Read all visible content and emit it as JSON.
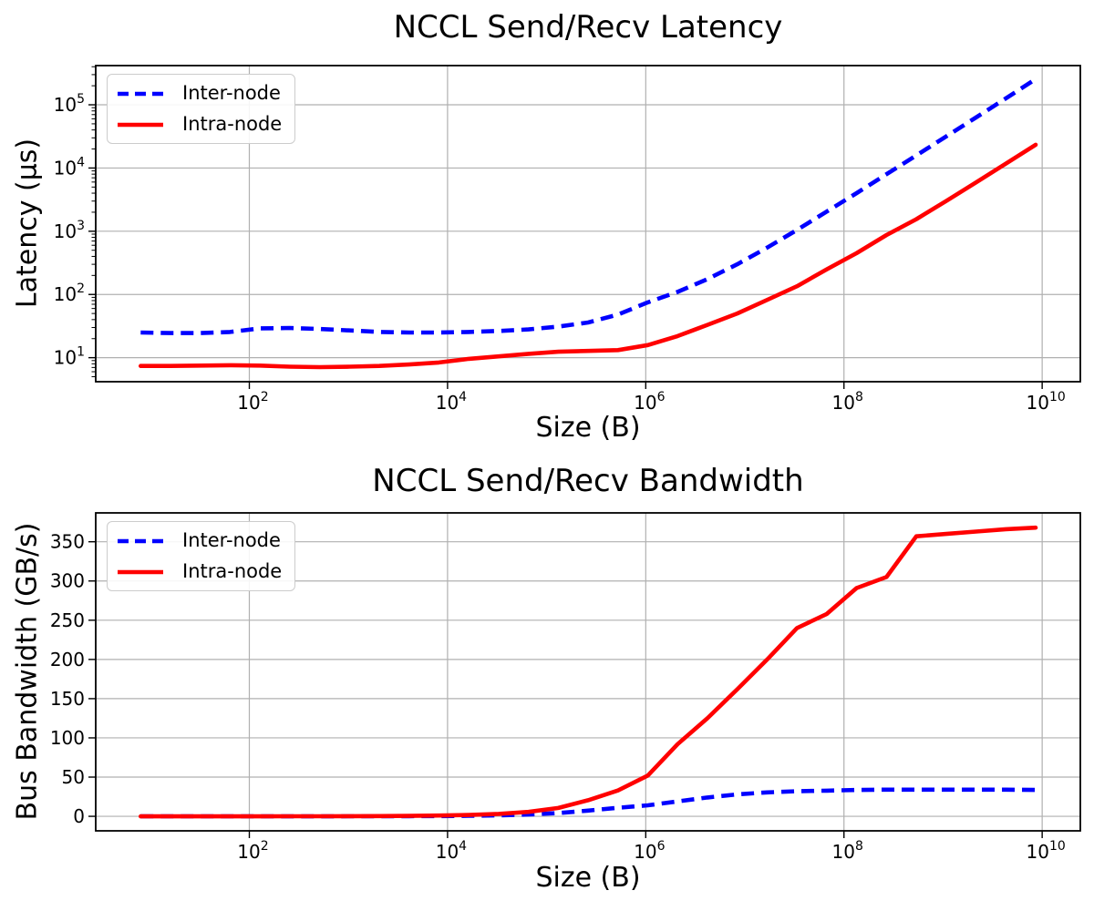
{
  "figure": {
    "background": "#ffffff",
    "grid_color": "#b0b0b0",
    "spine_color": "#000000",
    "tick_color": "#000000",
    "inter_node_color": "#0000ff",
    "intra_node_color": "#ff0000"
  },
  "chart_data": [
    {
      "type": "line",
      "title": "NCCL Send/Recv Latency",
      "xlabel": "Size (B)",
      "ylabel": "Latency (µs)",
      "x_scale": "log",
      "y_scale": "log",
      "grid": true,
      "legend_position": "upper left",
      "x_tick_exponents": [
        2,
        4,
        6,
        8,
        10
      ],
      "y_tick_exponents": [
        1,
        2,
        3,
        4,
        5
      ],
      "xlim_log10": [
        0.45,
        10.385
      ],
      "ylim_log10": [
        0.62,
        5.62
      ],
      "x": [
        8,
        16,
        32,
        64,
        128,
        256,
        512,
        1024,
        2048,
        4096,
        8192,
        16384,
        32768,
        65536,
        131072,
        262144,
        524288,
        1048576,
        2097152,
        4194304,
        8388608,
        16777216,
        33554432,
        67108864,
        134217728,
        268435456,
        536870912,
        1073741824,
        2147483648,
        4294967296,
        8589934592
      ],
      "series": [
        {
          "name": "Inter-node",
          "color": "#0000ff",
          "linestyle": "dashed",
          "values": [
            25,
            24.5,
            24.5,
            25.5,
            29,
            29.5,
            28.5,
            27,
            25.5,
            25,
            25,
            25.5,
            26.5,
            28,
            31,
            36,
            48,
            75,
            110,
            175,
            300,
            550,
            1050,
            2050,
            4000,
            8000,
            15800,
            31500,
            63000,
            126000,
            255000
          ]
        },
        {
          "name": "Intra-node",
          "color": "#ff0000",
          "linestyle": "solid",
          "values": [
            7.4,
            7.4,
            7.5,
            7.6,
            7.5,
            7.2,
            7.1,
            7.2,
            7.4,
            7.8,
            8.4,
            9.6,
            10.5,
            11.5,
            12.4,
            12.8,
            13.2,
            15.8,
            22,
            33,
            50,
            82,
            135,
            250,
            450,
            870,
            1550,
            3000,
            5900,
            11700,
            23300
          ]
        }
      ]
    },
    {
      "type": "line",
      "title": "NCCL Send/Recv Bandwidth",
      "xlabel": "Size (B)",
      "ylabel": "Bus Bandwidth (GB/s)",
      "x_scale": "log",
      "y_scale": "linear",
      "grid": true,
      "legend_position": "upper left",
      "x_tick_exponents": [
        2,
        4,
        6,
        8,
        10
      ],
      "y_ticks": [
        0,
        50,
        100,
        150,
        200,
        250,
        300,
        350
      ],
      "xlim_log10": [
        0.45,
        10.385
      ],
      "ylim": [
        -18.5,
        386.8
      ],
      "x": [
        8,
        16,
        32,
        64,
        128,
        256,
        512,
        1024,
        2048,
        4096,
        8192,
        16384,
        32768,
        65536,
        131072,
        262144,
        524288,
        1048576,
        2097152,
        4194304,
        8388608,
        16777216,
        33554432,
        67108864,
        134217728,
        268435456,
        536870912,
        1073741824,
        2147483648,
        4294967296,
        8589934592
      ],
      "series": [
        {
          "name": "Inter-node",
          "color": "#0000ff",
          "linestyle": "dashed",
          "values": [
            0.0003,
            0.0007,
            0.0013,
            0.0025,
            0.0044,
            0.0087,
            0.018,
            0.038,
            0.08,
            0.16,
            0.33,
            0.64,
            1.2,
            2.3,
            4.2,
            7.3,
            10.9,
            14,
            19,
            24,
            28,
            30.5,
            32,
            32.7,
            33.6,
            34,
            34,
            34,
            34,
            34,
            33.7
          ]
        },
        {
          "name": "Intra-node",
          "color": "#ff0000",
          "linestyle": "solid",
          "values": [
            0.001,
            0.002,
            0.004,
            0.008,
            0.017,
            0.036,
            0.072,
            0.14,
            0.28,
            0.53,
            0.98,
            1.7,
            3.1,
            5.7,
            10.6,
            20.5,
            33,
            52,
            92,
            125,
            162,
            200,
            240,
            258,
            291,
            305,
            357,
            360,
            363,
            366,
            368
          ]
        }
      ]
    }
  ]
}
